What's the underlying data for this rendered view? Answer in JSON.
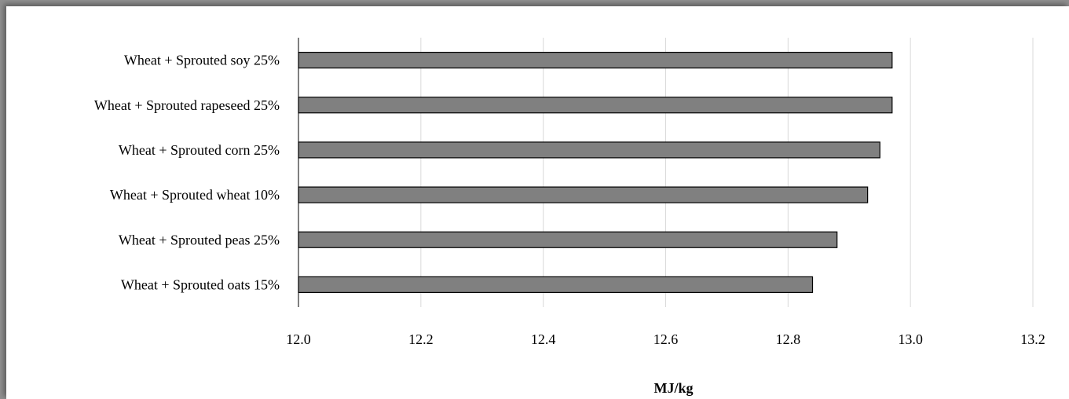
{
  "chart_data": {
    "type": "bar",
    "orientation": "horizontal",
    "categories": [
      "Wheat + Sprouted soy 25%",
      "Wheat + Sprouted rapeseed 25%",
      "Wheat + Sprouted corn 25%",
      "Wheat + Sprouted wheat 10%",
      "Wheat + Sprouted peas 25%",
      "Wheat + Sprouted oats 15%"
    ],
    "values": [
      12.97,
      12.97,
      12.95,
      12.93,
      12.88,
      12.84
    ],
    "xlim": [
      12.0,
      13.2
    ],
    "xticks": [
      "12.0",
      "12.2",
      "12.4",
      "12.6",
      "12.8",
      "13.0",
      "13.2"
    ],
    "xlabel": "MJ/kg",
    "ylabel": "",
    "title": "",
    "grid": "vertical",
    "bar_color": "#808080",
    "bar_edge_color": "#000000",
    "legend": "none"
  }
}
